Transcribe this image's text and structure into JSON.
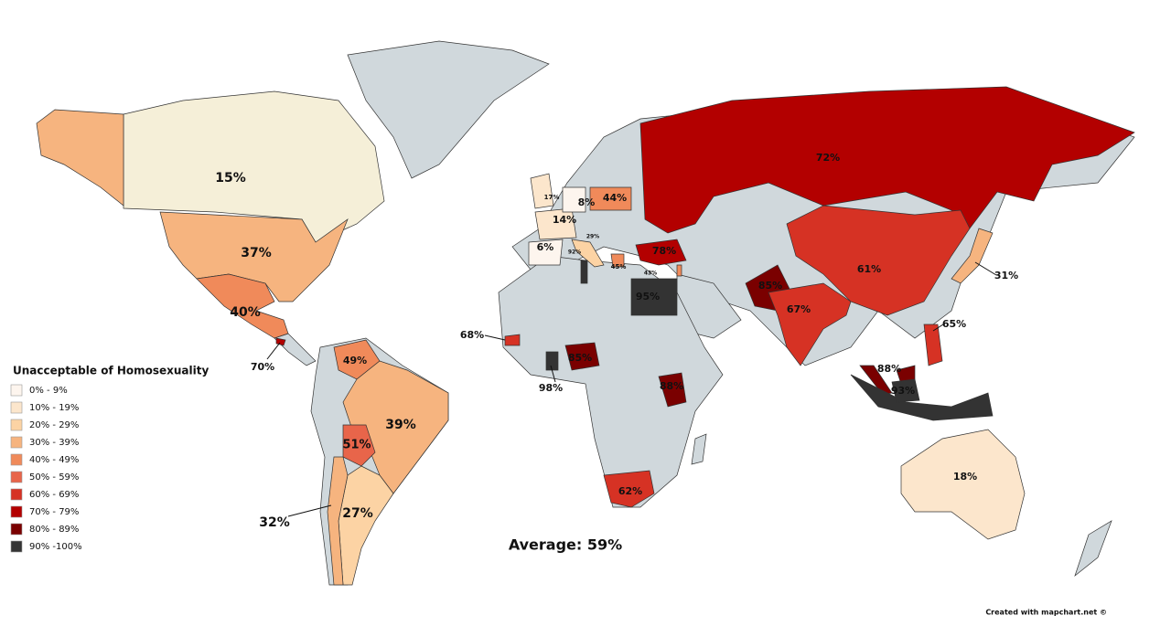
{
  "legend": {
    "title": "Unacceptable of Homosexuality",
    "items": [
      {
        "label": "0% - 9%",
        "color": "#fdf5ee"
      },
      {
        "label": "10% - 19%",
        "color": "#fce6cc"
      },
      {
        "label": "20% - 29%",
        "color": "#fcd3a4"
      },
      {
        "label": "30% - 39%",
        "color": "#f6b47f"
      },
      {
        "label": "40% - 49%",
        "color": "#f08a5a"
      },
      {
        "label": "50% - 59%",
        "color": "#e8654a"
      },
      {
        "label": "60% - 69%",
        "color": "#d63224"
      },
      {
        "label": "70% - 79%",
        "color": "#b30000"
      },
      {
        "label": "80% - 89%",
        "color": "#7a0000"
      },
      {
        "label": "90% -100%",
        "color": "#333333"
      }
    ]
  },
  "regions": [
    {
      "label": "15%",
      "color": "#f5efd8"
    },
    {
      "label": "37%",
      "color": "#f6b47f"
    },
    {
      "label": "40%",
      "color": "#f08a5a"
    },
    {
      "label": "70%",
      "color": "#b30000"
    },
    {
      "label": "49%",
      "color": "#f08a5a"
    },
    {
      "label": "39%",
      "color": "#f6b47f"
    },
    {
      "label": "51%",
      "color": "#e8654a"
    },
    {
      "label": "27%",
      "color": "#fcd3a4"
    },
    {
      "label": "32%",
      "color": "#f6b47f"
    },
    {
      "label": "17%",
      "color": "#fce6cc"
    },
    {
      "label": "14%",
      "color": "#fce6cc"
    },
    {
      "label": "8%",
      "color": "#fdf5ee"
    },
    {
      "label": "44%",
      "color": "#f08a5a"
    },
    {
      "label": "6%",
      "color": "#fdf5ee"
    },
    {
      "label": "29%",
      "color": "#fcd3a4"
    },
    {
      "label": "45%",
      "color": "#f08a5a"
    },
    {
      "label": "78%",
      "color": "#b30000"
    },
    {
      "label": "92%",
      "color": "#333333"
    },
    {
      "label": "95%",
      "color": "#333333"
    },
    {
      "label": "43%",
      "color": "#f08a5a"
    },
    {
      "label": "72%",
      "color": "#b30000"
    },
    {
      "label": "61%",
      "color": "#d63224"
    },
    {
      "label": "85%",
      "color": "#7a0000"
    },
    {
      "label": "67%",
      "color": "#d63224"
    },
    {
      "label": "31%",
      "color": "#f6b47f"
    },
    {
      "label": "65%",
      "color": "#d63224"
    },
    {
      "label": "88%",
      "color": "#7a0000"
    },
    {
      "label": "93%",
      "color": "#333333"
    },
    {
      "label": "18%",
      "color": "#fce6cc"
    },
    {
      "label": "68%",
      "color": "#d63224"
    },
    {
      "label": "98%",
      "color": "#333333"
    },
    {
      "label": "85%",
      "color": "#7a0000"
    },
    {
      "label": "88%",
      "color": "#7a0000"
    },
    {
      "label": "62%",
      "color": "#d63224"
    }
  ],
  "average": "Average: 59%",
  "credit": "Created with mapchart.net ©"
}
